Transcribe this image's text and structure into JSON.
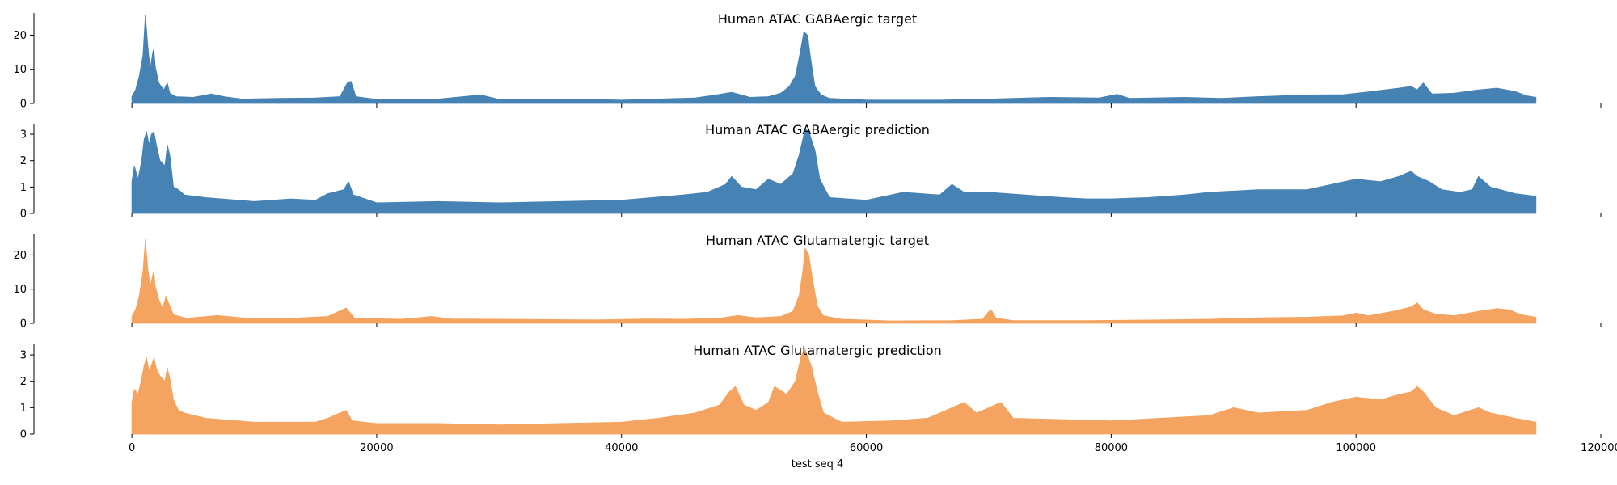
{
  "chart_data": {
    "type": "area",
    "xlabel": "test seq 4",
    "x_range": [
      0,
      114700
    ],
    "xlim": [
      -8000,
      120000
    ],
    "x_ticks": [
      0,
      20000,
      40000,
      60000,
      80000,
      100000,
      120000
    ],
    "grid": false,
    "legend": "none",
    "panels": [
      {
        "title": "Human ATAC GABAergic target",
        "color": "#4682b4",
        "ylim": [
          0,
          26.5
        ],
        "y_ticks": [
          0,
          10,
          20
        ],
        "points": [
          [
            0,
            2
          ],
          [
            300,
            4
          ],
          [
            600,
            8
          ],
          [
            900,
            14
          ],
          [
            1100,
            26
          ],
          [
            1300,
            17
          ],
          [
            1500,
            10
          ],
          [
            1700,
            15
          ],
          [
            1800,
            16
          ],
          [
            1900,
            11
          ],
          [
            2200,
            6
          ],
          [
            2600,
            4
          ],
          [
            2900,
            6
          ],
          [
            3100,
            3
          ],
          [
            3600,
            2
          ],
          [
            5000,
            1.8
          ],
          [
            6500,
            2.8
          ],
          [
            7500,
            2
          ],
          [
            9000,
            1.3
          ],
          [
            12000,
            1.5
          ],
          [
            15000,
            1.6
          ],
          [
            17000,
            2
          ],
          [
            17600,
            6
          ],
          [
            17900,
            6.5
          ],
          [
            18300,
            2
          ],
          [
            20000,
            1.2
          ],
          [
            25000,
            1.3
          ],
          [
            28500,
            2.5
          ],
          [
            30000,
            1.2
          ],
          [
            36000,
            1.3
          ],
          [
            40000,
            1
          ],
          [
            46000,
            1.6
          ],
          [
            47500,
            2.4
          ],
          [
            49000,
            3.3
          ],
          [
            50500,
            1.8
          ],
          [
            52000,
            2
          ],
          [
            53000,
            3
          ],
          [
            53700,
            5
          ],
          [
            54200,
            8
          ],
          [
            54600,
            15
          ],
          [
            54900,
            21
          ],
          [
            55200,
            20
          ],
          [
            55500,
            12
          ],
          [
            55800,
            5
          ],
          [
            56300,
            2.5
          ],
          [
            57000,
            1.5
          ],
          [
            60000,
            1
          ],
          [
            66000,
            1
          ],
          [
            70000,
            1.3
          ],
          [
            75000,
            1.8
          ],
          [
            79000,
            1.6
          ],
          [
            80500,
            2.7
          ],
          [
            81500,
            1.5
          ],
          [
            86000,
            1.8
          ],
          [
            89000,
            1.5
          ],
          [
            92000,
            2
          ],
          [
            96000,
            2.5
          ],
          [
            99000,
            2.6
          ],
          [
            101000,
            3.4
          ],
          [
            103500,
            4.5
          ],
          [
            104500,
            5
          ],
          [
            105000,
            4
          ],
          [
            105500,
            6
          ],
          [
            106200,
            2.8
          ],
          [
            108000,
            3
          ],
          [
            110000,
            4
          ],
          [
            111500,
            4.5
          ],
          [
            113000,
            3.5
          ],
          [
            114000,
            2.2
          ],
          [
            114700,
            1.8
          ]
        ]
      },
      {
        "title": "Human ATAC GABAergic prediction",
        "color": "#4682b4",
        "ylim": [
          0,
          3.4
        ],
        "y_ticks": [
          0,
          1,
          2,
          3
        ],
        "points": [
          [
            0,
            1.2
          ],
          [
            200,
            1.8
          ],
          [
            500,
            1.3
          ],
          [
            800,
            2
          ],
          [
            1000,
            2.8
          ],
          [
            1200,
            3.1
          ],
          [
            1400,
            2.6
          ],
          [
            1600,
            3
          ],
          [
            1800,
            3.1
          ],
          [
            2000,
            2.6
          ],
          [
            2300,
            2
          ],
          [
            2700,
            1.8
          ],
          [
            2900,
            2.6
          ],
          [
            3100,
            2.2
          ],
          [
            3400,
            1
          ],
          [
            3800,
            0.9
          ],
          [
            4300,
            0.7
          ],
          [
            6000,
            0.6
          ],
          [
            10000,
            0.45
          ],
          [
            13000,
            0.55
          ],
          [
            15000,
            0.5
          ],
          [
            16000,
            0.75
          ],
          [
            17300,
            0.9
          ],
          [
            17700,
            1.2
          ],
          [
            18100,
            0.7
          ],
          [
            20000,
            0.4
          ],
          [
            25000,
            0.45
          ],
          [
            30000,
            0.4
          ],
          [
            35000,
            0.45
          ],
          [
            40000,
            0.5
          ],
          [
            42500,
            0.6
          ],
          [
            45000,
            0.7
          ],
          [
            47000,
            0.8
          ],
          [
            48500,
            1.1
          ],
          [
            49000,
            1.4
          ],
          [
            49800,
            1
          ],
          [
            51000,
            0.9
          ],
          [
            52000,
            1.3
          ],
          [
            53000,
            1.1
          ],
          [
            54000,
            1.5
          ],
          [
            54500,
            2.2
          ],
          [
            55000,
            3.2
          ],
          [
            55300,
            3.1
          ],
          [
            55800,
            2.4
          ],
          [
            56200,
            1.3
          ],
          [
            57000,
            0.6
          ],
          [
            60000,
            0.5
          ],
          [
            63000,
            0.8
          ],
          [
            66000,
            0.7
          ],
          [
            67000,
            1.1
          ],
          [
            68000,
            0.8
          ],
          [
            70000,
            0.8
          ],
          [
            73000,
            0.7
          ],
          [
            76000,
            0.6
          ],
          [
            78000,
            0.55
          ],
          [
            80000,
            0.55
          ],
          [
            83000,
            0.6
          ],
          [
            86000,
            0.7
          ],
          [
            88000,
            0.8
          ],
          [
            92000,
            0.9
          ],
          [
            96000,
            0.9
          ],
          [
            98000,
            1.1
          ],
          [
            100000,
            1.3
          ],
          [
            102000,
            1.2
          ],
          [
            103500,
            1.4
          ],
          [
            104500,
            1.6
          ],
          [
            105000,
            1.4
          ],
          [
            106000,
            1.2
          ],
          [
            107000,
            0.9
          ],
          [
            108500,
            0.8
          ],
          [
            109500,
            0.9
          ],
          [
            110000,
            1.4
          ],
          [
            111000,
            1
          ],
          [
            113000,
            0.75
          ],
          [
            114700,
            0.65
          ]
        ]
      },
      {
        "title": "Human ATAC Glutamatergic target",
        "color": "#f4a460",
        "ylim": [
          0,
          26
        ],
        "y_ticks": [
          0,
          10,
          20
        ],
        "points": [
          [
            0,
            2
          ],
          [
            300,
            4
          ],
          [
            600,
            8
          ],
          [
            900,
            15
          ],
          [
            1100,
            24.5
          ],
          [
            1300,
            16
          ],
          [
            1500,
            11
          ],
          [
            1700,
            14
          ],
          [
            1800,
            15.5
          ],
          [
            1900,
            11
          ],
          [
            2200,
            7
          ],
          [
            2500,
            4.5
          ],
          [
            2800,
            8
          ],
          [
            3000,
            6
          ],
          [
            3400,
            2.5
          ],
          [
            4500,
            1.5
          ],
          [
            7000,
            2.3
          ],
          [
            9000,
            1.6
          ],
          [
            12000,
            1.3
          ],
          [
            16000,
            2
          ],
          [
            17500,
            4.5
          ],
          [
            18200,
            1.5
          ],
          [
            22000,
            1.2
          ],
          [
            24500,
            2
          ],
          [
            26000,
            1.3
          ],
          [
            30000,
            1.2
          ],
          [
            38000,
            1
          ],
          [
            42000,
            1.3
          ],
          [
            45000,
            1.2
          ],
          [
            48000,
            1.5
          ],
          [
            49500,
            2.3
          ],
          [
            51000,
            1.6
          ],
          [
            53000,
            2
          ],
          [
            54000,
            3.5
          ],
          [
            54500,
            8
          ],
          [
            54800,
            15
          ],
          [
            55000,
            22
          ],
          [
            55300,
            20
          ],
          [
            55600,
            13
          ],
          [
            56000,
            5
          ],
          [
            56500,
            2.2
          ],
          [
            58000,
            1.2
          ],
          [
            62000,
            0.7
          ],
          [
            67000,
            0.8
          ],
          [
            69500,
            1.2
          ],
          [
            70000,
            3.5
          ],
          [
            70200,
            4
          ],
          [
            70600,
            1.5
          ],
          [
            72000,
            0.8
          ],
          [
            78000,
            0.8
          ],
          [
            84000,
            1
          ],
          [
            88000,
            1.2
          ],
          [
            92000,
            1.6
          ],
          [
            96000,
            1.8
          ],
          [
            99000,
            2.2
          ],
          [
            100000,
            3
          ],
          [
            101000,
            2.2
          ],
          [
            103000,
            3.5
          ],
          [
            104500,
            4.8
          ],
          [
            105000,
            6
          ],
          [
            105500,
            4
          ],
          [
            106500,
            2.7
          ],
          [
            108000,
            2.2
          ],
          [
            110000,
            3.5
          ],
          [
            111500,
            4.3
          ],
          [
            112500,
            4
          ],
          [
            113500,
            2.5
          ],
          [
            114700,
            1.8
          ]
        ]
      },
      {
        "title": "Human ATAC Glutamatergic prediction",
        "color": "#f4a460",
        "ylim": [
          0,
          3.4
        ],
        "y_ticks": [
          0,
          1,
          2,
          3
        ],
        "points": [
          [
            0,
            1.2
          ],
          [
            200,
            1.7
          ],
          [
            500,
            1.5
          ],
          [
            800,
            2.1
          ],
          [
            1000,
            2.6
          ],
          [
            1200,
            2.9
          ],
          [
            1400,
            2.4
          ],
          [
            1600,
            2.6
          ],
          [
            1800,
            2.9
          ],
          [
            2000,
            2.5
          ],
          [
            2300,
            2.2
          ],
          [
            2700,
            2
          ],
          [
            2900,
            2.5
          ],
          [
            3100,
            2.1
          ],
          [
            3400,
            1.3
          ],
          [
            3800,
            0.9
          ],
          [
            4300,
            0.8
          ],
          [
            6000,
            0.6
          ],
          [
            10000,
            0.45
          ],
          [
            13000,
            0.45
          ],
          [
            15000,
            0.45
          ],
          [
            16000,
            0.6
          ],
          [
            17500,
            0.9
          ],
          [
            18000,
            0.5
          ],
          [
            20000,
            0.4
          ],
          [
            25000,
            0.4
          ],
          [
            30000,
            0.35
          ],
          [
            35000,
            0.4
          ],
          [
            40000,
            0.45
          ],
          [
            43000,
            0.6
          ],
          [
            46000,
            0.8
          ],
          [
            48000,
            1.1
          ],
          [
            48800,
            1.6
          ],
          [
            49300,
            1.8
          ],
          [
            50000,
            1.1
          ],
          [
            51000,
            0.9
          ],
          [
            52000,
            1.2
          ],
          [
            52500,
            1.8
          ],
          [
            53500,
            1.5
          ],
          [
            54200,
            2
          ],
          [
            54700,
            3
          ],
          [
            55000,
            3.2
          ],
          [
            55500,
            2.6
          ],
          [
            56000,
            1.6
          ],
          [
            56500,
            0.8
          ],
          [
            58000,
            0.45
          ],
          [
            62000,
            0.5
          ],
          [
            65000,
            0.6
          ],
          [
            67000,
            1
          ],
          [
            68000,
            1.2
          ],
          [
            69000,
            0.8
          ],
          [
            70000,
            1
          ],
          [
            71000,
            1.2
          ],
          [
            72000,
            0.6
          ],
          [
            76000,
            0.55
          ],
          [
            80000,
            0.5
          ],
          [
            84000,
            0.6
          ],
          [
            88000,
            0.7
          ],
          [
            90000,
            1
          ],
          [
            92000,
            0.8
          ],
          [
            96000,
            0.9
          ],
          [
            98000,
            1.2
          ],
          [
            100000,
            1.4
          ],
          [
            102000,
            1.3
          ],
          [
            103500,
            1.5
          ],
          [
            104500,
            1.6
          ],
          [
            105000,
            1.8
          ],
          [
            105500,
            1.6
          ],
          [
            106500,
            1
          ],
          [
            108000,
            0.7
          ],
          [
            110000,
            1
          ],
          [
            111000,
            0.8
          ],
          [
            113000,
            0.6
          ],
          [
            114700,
            0.45
          ]
        ]
      }
    ]
  }
}
